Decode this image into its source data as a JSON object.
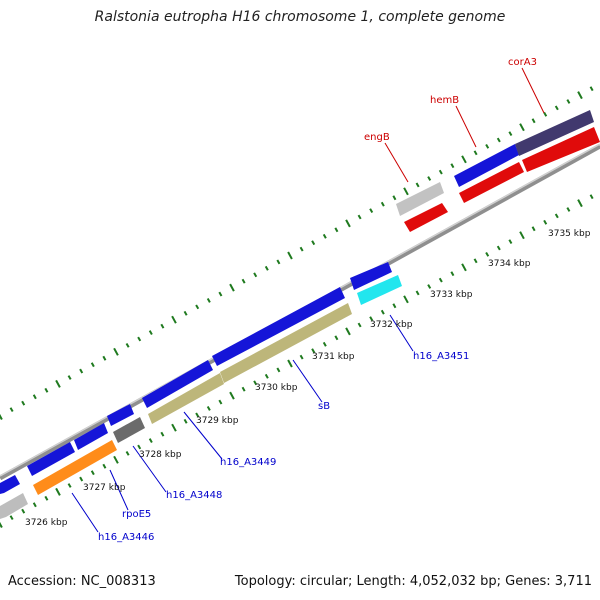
{
  "title": "Ralstonia eutropha H16 chromosome 1, complete genome",
  "footer": {
    "accession": "Accession: NC_008313",
    "summary": "Topology: circular; Length: 4,052,032 bp; Genes: 3,711"
  },
  "colors": {
    "backbone": "#999999",
    "tick": "#1f7a1f",
    "label_blue": "#0000cc",
    "label_red": "#cc0000",
    "ruler_text": "#000000"
  },
  "ruler": [
    "3726 kbp",
    "3727 kbp",
    "3728 kbp",
    "3729 kbp",
    "3730 kbp",
    "3731 kbp",
    "3732 kbp",
    "3733 kbp",
    "3734 kbp",
    "3735 kbp"
  ],
  "gene_labels": {
    "h16_A3446": "h16_A3446",
    "rpoE5": "rpoE5",
    "h16_A3448": "h16_A3448",
    "h16_A3449": "h16_A3449",
    "sB": "sB",
    "h16_A3451": "h16_A3451",
    "engB": "engB",
    "hemB": "hemB",
    "corA3": "corA3"
  }
}
